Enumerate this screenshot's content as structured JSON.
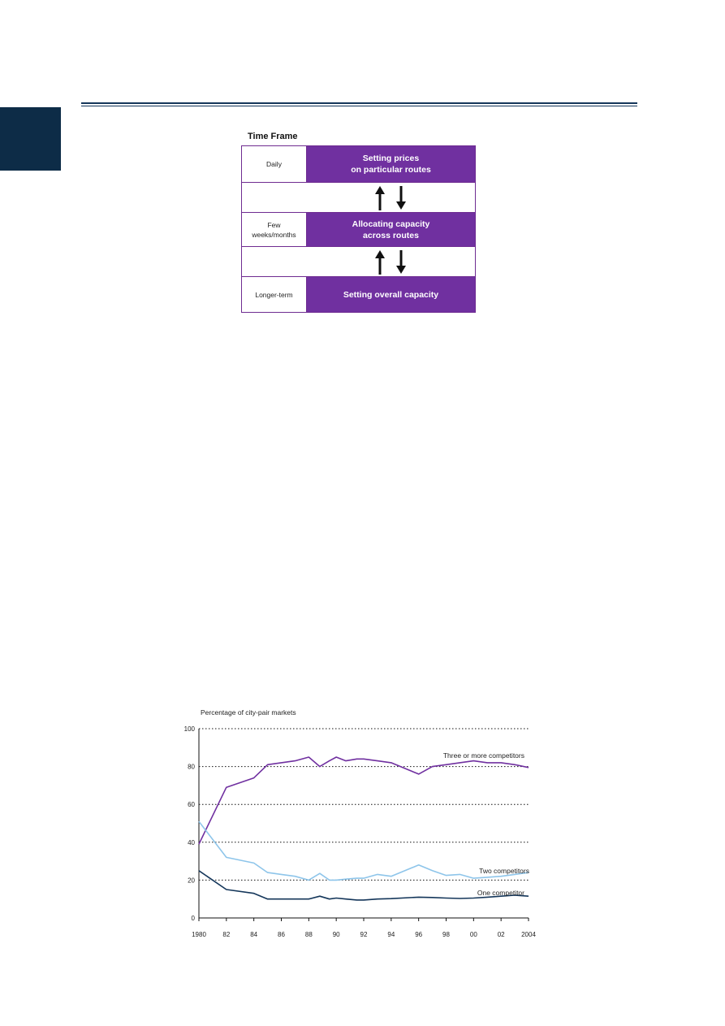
{
  "diagram": {
    "title": "Time Frame",
    "rows": [
      {
        "label": "Daily",
        "activity": "Setting prices\non particular routes"
      },
      {
        "label": "Few\nweeks/months",
        "activity": "Allocating capacity\nacross routes"
      },
      {
        "label": "Longer-term",
        "activity": "Setting overall capacity"
      }
    ],
    "colors": {
      "box": "#7030a0",
      "border": "#6f2c91",
      "arrow": "#111111"
    }
  },
  "chart_data": {
    "type": "line",
    "title": "Percentage of city-pair markets",
    "xlabel": "",
    "ylabel": "",
    "x": [
      1980,
      1982,
      1984,
      1985,
      1986,
      1987,
      1988,
      1988.8,
      1989.5,
      1990,
      1990.7,
      1991.5,
      1992,
      1993,
      1994,
      1996,
      1997,
      1998,
      1999,
      2000,
      2001,
      2002,
      2003,
      2004
    ],
    "xticks": [
      "1980",
      "82",
      "84",
      "86",
      "88",
      "90",
      "92",
      "94",
      "96",
      "98",
      "00",
      "02",
      "2004"
    ],
    "xtick_values": [
      1980,
      1982,
      1984,
      1986,
      1988,
      1990,
      1992,
      1994,
      1996,
      1998,
      2000,
      2002,
      2004
    ],
    "ylim": [
      0,
      100
    ],
    "yticks": [
      0,
      20,
      40,
      60,
      80,
      100
    ],
    "grid": "dotted horizontal",
    "series": [
      {
        "name": "Three or more competitors",
        "color": "#7030a0",
        "values": [
          39,
          69,
          74,
          81,
          82,
          83,
          85,
          80,
          83,
          85,
          83,
          84,
          84,
          83,
          82,
          76,
          80,
          81,
          82,
          83,
          82,
          82,
          81,
          79.5
        ]
      },
      {
        "name": "Two competitors",
        "color": "#8ec5ea",
        "values": [
          51,
          32,
          29,
          24,
          23,
          22,
          20,
          23.5,
          20,
          20,
          20.5,
          21,
          21,
          23,
          22,
          28,
          25,
          22.5,
          23,
          21,
          21.5,
          22,
          23,
          24
        ]
      },
      {
        "name": "One competitor",
        "color": "#14365a",
        "values": [
          25,
          15,
          13,
          10,
          10,
          10,
          10,
          11.5,
          10,
          10.5,
          10,
          9.5,
          9.5,
          10,
          10.2,
          11,
          10.8,
          10.5,
          10.3,
          10.5,
          11,
          11.5,
          12,
          11.5
        ]
      }
    ],
    "annotations": [
      {
        "text": "Three or more competitors",
        "series": 0
      },
      {
        "text": "Two competitors",
        "series": 1
      },
      {
        "text": "One competitor",
        "series": 2
      }
    ]
  }
}
